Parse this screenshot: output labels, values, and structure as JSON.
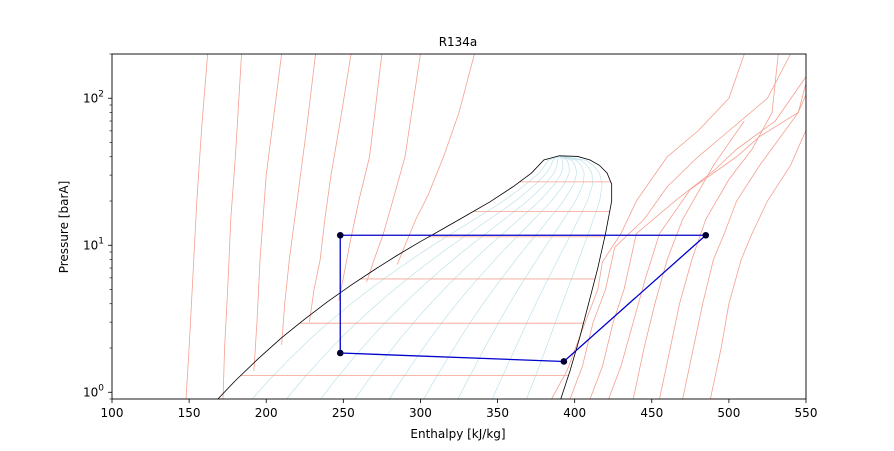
{
  "chart_data": {
    "type": "line",
    "title": "R134a",
    "xlabel": "Enthalpy [kJ/kg]",
    "ylabel": "Pressure [barA]",
    "xlim": [
      100,
      550
    ],
    "ylim": [
      0.9,
      200
    ],
    "yscale": "log",
    "grid": false,
    "x_ticks": [
      100,
      150,
      200,
      250,
      300,
      350,
      400,
      450,
      500,
      550
    ],
    "x_tick_labels": [
      "100",
      "150",
      "200",
      "250",
      "300",
      "350",
      "400",
      "450",
      "500",
      "550"
    ],
    "y_ticks": [
      1,
      10,
      100
    ],
    "y_tick_labels": [
      {
        "base": "10",
        "exp": "0"
      },
      {
        "base": "10",
        "exp": "1"
      },
      {
        "base": "10",
        "exp": "2"
      }
    ],
    "colors": {
      "cycle": "#0000cc",
      "cycle_points": "#000033",
      "saturation_dome": "#000000",
      "isotherms": "#f4a090",
      "quality_lines": "#bfe3ea"
    },
    "cycle": {
      "h": [
        248,
        393,
        485,
        248,
        248
      ],
      "p": [
        1.85,
        1.62,
        11.7,
        11.7,
        1.85
      ]
    },
    "cycle_points": [
      {
        "h": 248,
        "p": 1.85
      },
      {
        "h": 393,
        "p": 1.62
      },
      {
        "h": 485,
        "p": 11.7
      },
      {
        "h": 248,
        "p": 11.7
      }
    ],
    "saturation_dome": {
      "liquid": {
        "h": [
          150,
          165,
          180,
          195,
          210,
          225,
          240,
          255,
          270,
          285,
          300,
          315,
          330,
          345,
          360,
          372,
          380
        ],
        "p": [
          0.55,
          0.82,
          1.2,
          1.7,
          2.35,
          3.15,
          4.15,
          5.35,
          6.8,
          8.55,
          10.6,
          13.0,
          16.0,
          19.7,
          25.0,
          31.0,
          38.0
        ]
      },
      "critical": {
        "h": 390,
        "p": 40.6
      },
      "vapor": {
        "h": [
          390,
          402,
          410,
          416,
          421,
          424,
          424,
          420,
          415,
          409,
          403,
          397,
          391,
          386
        ],
        "p": [
          40.6,
          40.2,
          38.0,
          35.0,
          31.0,
          26.0,
          20.0,
          12.0,
          7.0,
          4.0,
          2.3,
          1.4,
          0.9,
          0.55
        ]
      }
    },
    "isotherms": [
      {
        "h": [
          148,
          150,
          152,
          155,
          158,
          162
        ],
        "p": [
          0.9,
          2,
          5,
          20,
          60,
          200
        ]
      },
      {
        "h": [
          172,
          173,
          175,
          177,
          180,
          184
        ],
        "p": [
          0.9,
          2,
          5,
          15,
          40,
          200
        ]
      },
      {
        "h": [
          192,
          194,
          196,
          200,
          210
        ],
        "p": [
          1.4,
          3,
          8,
          30,
          200
        ]
      },
      {
        "h": [
          210,
          212,
          215,
          220,
          226,
          232
        ],
        "p": [
          2.1,
          4,
          8,
          20,
          60,
          200
        ]
      },
      {
        "h": [
          228,
          231,
          235,
          238,
          242,
          248,
          255
        ],
        "p": [
          3.0,
          5,
          8,
          15,
          30,
          70,
          200
        ]
      },
      {
        "h": [
          247,
          250,
          254,
          260,
          267,
          275
        ],
        "p": [
          4.2,
          6,
          10,
          20,
          40,
          200
        ]
      },
      {
        "h": [
          265,
          270,
          276,
          282,
          290,
          300
        ],
        "p": [
          5.6,
          8,
          12,
          20,
          40,
          200
        ]
      },
      {
        "h": [
          285,
          290,
          297,
          305,
          315,
          325,
          335
        ],
        "p": [
          7.4,
          10,
          15,
          22,
          40,
          80,
          200
        ]
      },
      {
        "h": [
          385,
          395,
          404,
          415,
          418,
          430,
          440,
          460,
          480,
          500,
          510
        ],
        "p": [
          0.9,
          1.4,
          2.5,
          5,
          7.7,
          12,
          20,
          40,
          60,
          100,
          200
        ]
      },
      {
        "h": [
          397,
          405,
          412,
          420,
          426,
          445,
          460,
          480,
          500,
          525,
          540
        ],
        "p": [
          0.9,
          1.5,
          3,
          5,
          9.7,
          15,
          25,
          40,
          60,
          100,
          200
        ]
      },
      {
        "h": [
          410,
          418,
          425,
          432,
          440,
          465,
          490,
          505,
          530,
          550
        ],
        "p": [
          0.9,
          1.5,
          3,
          5,
          12.0,
          20,
          32,
          45,
          70,
          140
        ]
      },
      {
        "h": [
          422,
          430,
          438,
          446,
          455,
          475,
          505,
          520,
          545,
          555
        ],
        "p": [
          0.9,
          1.5,
          3,
          6,
          12,
          24,
          40,
          55,
          80,
          140
        ]
      },
      {
        "h": [
          438,
          445,
          452,
          460,
          470,
          490,
          510
        ],
        "p": [
          0.9,
          2,
          4,
          8,
          15,
          35,
          70
        ]
      },
      {
        "h": [
          455,
          462,
          468,
          476,
          485,
          500,
          515,
          528,
          532
        ],
        "p": [
          0.9,
          2,
          4,
          8,
          15,
          28,
          45,
          80,
          200
        ]
      },
      {
        "h": [
          470,
          477,
          483,
          490,
          497,
          505,
          520,
          545,
          555
        ],
        "p": [
          0.9,
          2,
          4,
          8,
          12,
          20,
          35,
          80,
          200
        ]
      },
      {
        "h": [
          488,
          495,
          500,
          508,
          515,
          525,
          540,
          555
        ],
        "p": [
          0.9,
          2,
          4,
          8,
          12,
          20,
          35,
          80
        ]
      }
    ],
    "quality_lines": [
      0.1,
      0.2,
      0.3,
      0.4,
      0.5,
      0.6,
      0.7,
      0.8,
      0.9
    ]
  }
}
